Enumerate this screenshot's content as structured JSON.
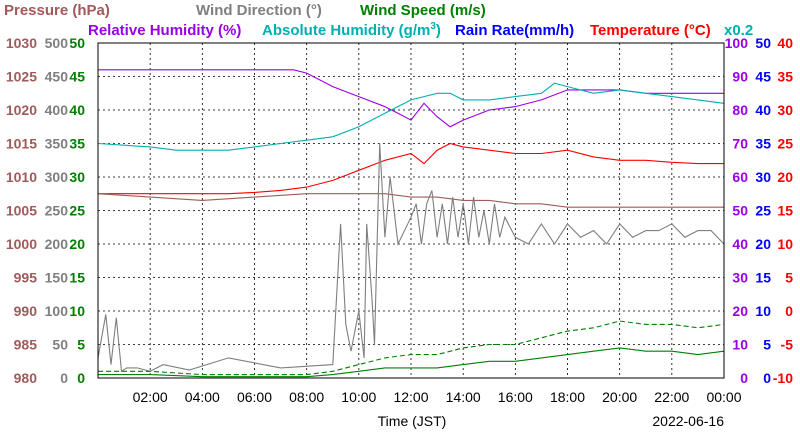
{
  "chart_data": {
    "type": "line",
    "date": "2022-06-16",
    "xlabel": "Time (JST)",
    "x_ticks": [
      "02:00",
      "04:00",
      "06:00",
      "08:00",
      "10:00",
      "12:00",
      "14:00",
      "16:00",
      "18:00",
      "20:00",
      "22:00",
      "00:00"
    ],
    "grid": true,
    "legend": [
      {
        "label": "Pressure (hPa)",
        "color": "#a05a5a"
      },
      {
        "label": "Wind Direction (°)",
        "color": "#7f7f7f"
      },
      {
        "label": "Wind Speed (m/s)",
        "color": "#008000"
      },
      {
        "label": "Relative Humidity (%)",
        "color": "#9a00e8"
      },
      {
        "label": "Absolute Humidity (g/m",
        "sup": "3",
        "tail": ")",
        "color": "#00b0b0"
      },
      {
        "label": "Rain Rate(mm/h)",
        "color": "#0000ff"
      },
      {
        "label": "Temperature (°C)",
        "color": "#ff0000"
      },
      {
        "label": "x0.2",
        "color": "#00b0b0"
      }
    ],
    "axes": [
      {
        "name": "Pressure (hPa)",
        "side": "left",
        "color": "#a05a5a",
        "range": [
          980,
          1030
        ],
        "ticks": [
          "980",
          "985",
          "990",
          "995",
          "1000",
          "1005",
          "1010",
          "1015",
          "1020",
          "1025",
          "1030"
        ]
      },
      {
        "name": "Wind Direction (°)",
        "side": "left",
        "color": "#7f7f7f",
        "range": [
          0,
          500
        ],
        "ticks": [
          "0",
          "50",
          "100",
          "150",
          "200",
          "250",
          "300",
          "350",
          "400",
          "450",
          "500"
        ]
      },
      {
        "name": "Wind Speed (m/s)",
        "side": "left",
        "color": "#008000",
        "range": [
          0,
          50
        ],
        "ticks": [
          "0",
          "5",
          "10",
          "15",
          "20",
          "25",
          "30",
          "35",
          "40",
          "45",
          "50"
        ]
      },
      {
        "name": "Relative Humidity (%)",
        "side": "right",
        "color": "#9a00e8",
        "range": [
          0,
          100
        ],
        "ticks": [
          "0",
          "10",
          "20",
          "30",
          "40",
          "50",
          "60",
          "70",
          "80",
          "90",
          "100"
        ]
      },
      {
        "name": "Rain Rate(mm/h)",
        "side": "right",
        "color": "#0000ff",
        "range": [
          0,
          50
        ],
        "ticks": [
          "0",
          "5",
          "10",
          "15",
          "20",
          "25",
          "30",
          "35",
          "40",
          "45",
          "50"
        ]
      },
      {
        "name": "Temperature (°C)",
        "side": "right",
        "color": "#ff0000",
        "range": [
          -10,
          40
        ],
        "ticks": [
          "-10",
          "-5",
          "0",
          "5",
          "10",
          "15",
          "20",
          "25",
          "30",
          "35",
          "40"
        ]
      }
    ],
    "x_range_hours": [
      0,
      24
    ],
    "series": [
      {
        "name": "Relative Humidity (%)",
        "color": "#9a00e8",
        "axis": 3,
        "x": [
          0,
          7.5,
          8,
          9,
          10,
          11,
          11.5,
          12,
          12.5,
          13,
          13.5,
          14,
          15,
          16,
          17,
          18,
          19,
          20,
          21,
          22,
          23,
          24
        ],
        "y": [
          92,
          92,
          91,
          87,
          84,
          81,
          79,
          77,
          82,
          78,
          75,
          77,
          80,
          81,
          83,
          86,
          86,
          86,
          85,
          85,
          85,
          85
        ]
      },
      {
        "name": "Absolute Humidity (g/m3) x0.2",
        "color": "#00b0b0",
        "axis": 3,
        "x": [
          0,
          2,
          3,
          5,
          6,
          7,
          8,
          9,
          10,
          11,
          12,
          12.5,
          13,
          13.5,
          14,
          15,
          16,
          17,
          17.5,
          18,
          19,
          20,
          21,
          22,
          23,
          24
        ],
        "y": [
          70,
          69,
          68,
          68,
          69,
          70,
          71,
          72,
          75,
          79,
          83,
          84,
          85,
          85,
          83,
          83,
          84,
          85,
          88,
          87,
          85,
          86,
          85,
          84,
          83,
          82
        ]
      },
      {
        "name": "Temperature (°C)",
        "color": "#ff0000",
        "axis": 5,
        "x": [
          0,
          2,
          4,
          5,
          6,
          7,
          8,
          9,
          10,
          11,
          12,
          12.5,
          13,
          13.5,
          14,
          15,
          16,
          17,
          18,
          19,
          20,
          21,
          22,
          23,
          24
        ],
        "y": [
          17.5,
          17.5,
          17.5,
          17.5,
          17.7,
          18,
          18.5,
          19.5,
          21,
          22.5,
          23.5,
          22,
          24,
          25,
          24.5,
          24,
          23.5,
          23.5,
          24,
          23,
          22.5,
          22.5,
          22.2,
          22,
          22
        ]
      },
      {
        "name": "Pressure (hPa)",
        "color": "#a05a5a",
        "axis": 0,
        "x": [
          0,
          2,
          4,
          6,
          8,
          10,
          11,
          12,
          13,
          14,
          15,
          16,
          17,
          18,
          19,
          20,
          21,
          22,
          23,
          24
        ],
        "y": [
          1007.5,
          1007,
          1006.5,
          1007,
          1007.5,
          1007.5,
          1007.5,
          1007,
          1007,
          1006.5,
          1006.5,
          1006,
          1006,
          1005.5,
          1005.5,
          1005.5,
          1005.5,
          1005.5,
          1005.5,
          1005.5
        ]
      },
      {
        "name": "Wind Direction (°)",
        "color": "#7f7f7f",
        "axis": 1,
        "x": [
          0,
          0.3,
          0.5,
          0.7,
          0.9,
          1.1,
          1.5,
          2,
          2.5,
          3.5,
          5,
          7,
          9,
          9.3,
          9.5,
          9.7,
          10,
          10.2,
          10.3,
          10.5,
          10.6,
          10.8,
          11,
          11.2,
          11.5,
          12,
          12.2,
          12.4,
          12.6,
          12.8,
          13,
          13.2,
          13.4,
          13.6,
          13.8,
          14,
          14.2,
          14.4,
          14.6,
          14.8,
          15,
          15.2,
          15.4,
          15.6,
          16,
          16.5,
          17,
          17.5,
          18,
          18.5,
          19,
          19.5,
          20,
          20.5,
          21,
          21.5,
          22,
          22.5,
          23,
          23.5,
          24
        ],
        "y": [
          30,
          95,
          20,
          90,
          10,
          15,
          15,
          10,
          20,
          12,
          30,
          15,
          20,
          230,
          80,
          40,
          100,
          30,
          230,
          120,
          50,
          350,
          210,
          300,
          200,
          240,
          260,
          200,
          260,
          280,
          210,
          260,
          200,
          270,
          210,
          260,
          200,
          270,
          210,
          250,
          200,
          260,
          210,
          240,
          210,
          200,
          230,
          200,
          230,
          210,
          220,
          200,
          230,
          210,
          220,
          220,
          230,
          210,
          220,
          220,
          200
        ]
      },
      {
        "name": "Wind Speed (m/s) max",
        "color": "#008000",
        "axis": 2,
        "dashed": true,
        "x": [
          0,
          2,
          4,
          6,
          8,
          9,
          10,
          11,
          12,
          13,
          14,
          15,
          16,
          17,
          18,
          19,
          20,
          21,
          22,
          23,
          24
        ],
        "y": [
          1,
          1,
          0.5,
          0.5,
          0.5,
          1,
          2,
          3,
          3.5,
          3.5,
          4.5,
          5,
          5,
          6,
          7,
          7.5,
          8.5,
          8,
          8,
          7.5,
          8
        ]
      },
      {
        "name": "Wind Speed (m/s) avg",
        "color": "#008000",
        "axis": 2,
        "x": [
          0,
          2,
          4,
          6,
          8,
          9,
          10,
          11,
          12,
          13,
          14,
          15,
          16,
          17,
          18,
          19,
          20,
          21,
          22,
          23,
          24
        ],
        "y": [
          0.5,
          0.5,
          0.2,
          0.2,
          0.2,
          0.5,
          1,
          1.5,
          1.5,
          1.5,
          2,
          2.5,
          2.5,
          3,
          3.5,
          4,
          4.5,
          4,
          4,
          3.5,
          4
        ]
      },
      {
        "name": "Rain Rate(mm/h)",
        "color": "#0000ff",
        "axis": 4,
        "x": [
          0,
          24
        ],
        "y": [
          0,
          0
        ]
      }
    ]
  }
}
